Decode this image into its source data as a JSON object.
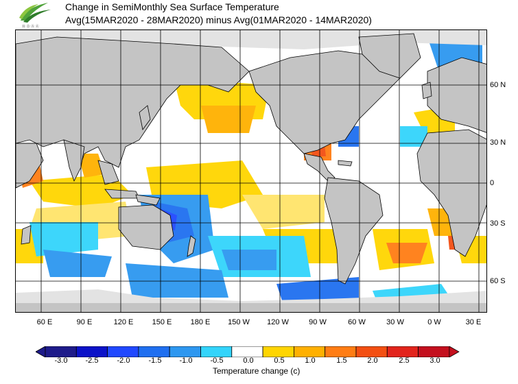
{
  "header": {
    "title_line1": "Change in SemiMonthly Sea Surface Temperature",
    "title_line2": "Avg(15MAR2020 - 28MAR2020) minus Avg(01MAR2020 - 14MAR2020)"
  },
  "map": {
    "lat_labels": [
      "60 N",
      "30 N",
      "0",
      "30 S",
      "60 S"
    ],
    "lon_labels": [
      "60 E",
      "90 E",
      "120 E",
      "150 E",
      "180 E",
      "150 W",
      "120 W",
      "90 W",
      "60 W",
      "30 W",
      "0 W",
      "30 E"
    ],
    "colors": {
      "land": "#c4c4c4",
      "ice": "#e3e3e3",
      "ocean_neutral": "#ffffff",
      "grid": "#000000"
    }
  },
  "colorbar": {
    "title": "Temperature change  (c)",
    "tick_labels": [
      "-3.0",
      "-2.5",
      "-2.0",
      "-1.5",
      "-1.0",
      "-0.5",
      "0.0",
      "0.5",
      "1.0",
      "1.5",
      "2.0",
      "2.5",
      "3.0"
    ],
    "colors": [
      "#1e1b8a",
      "#0b12c8",
      "#2048ff",
      "#1f6ff0",
      "#2d97f0",
      "#33d4fb",
      "#ffffff",
      "#ffd500",
      "#ffb000",
      "#ff7d14",
      "#f34f12",
      "#e2241c",
      "#c4101e"
    ]
  }
}
